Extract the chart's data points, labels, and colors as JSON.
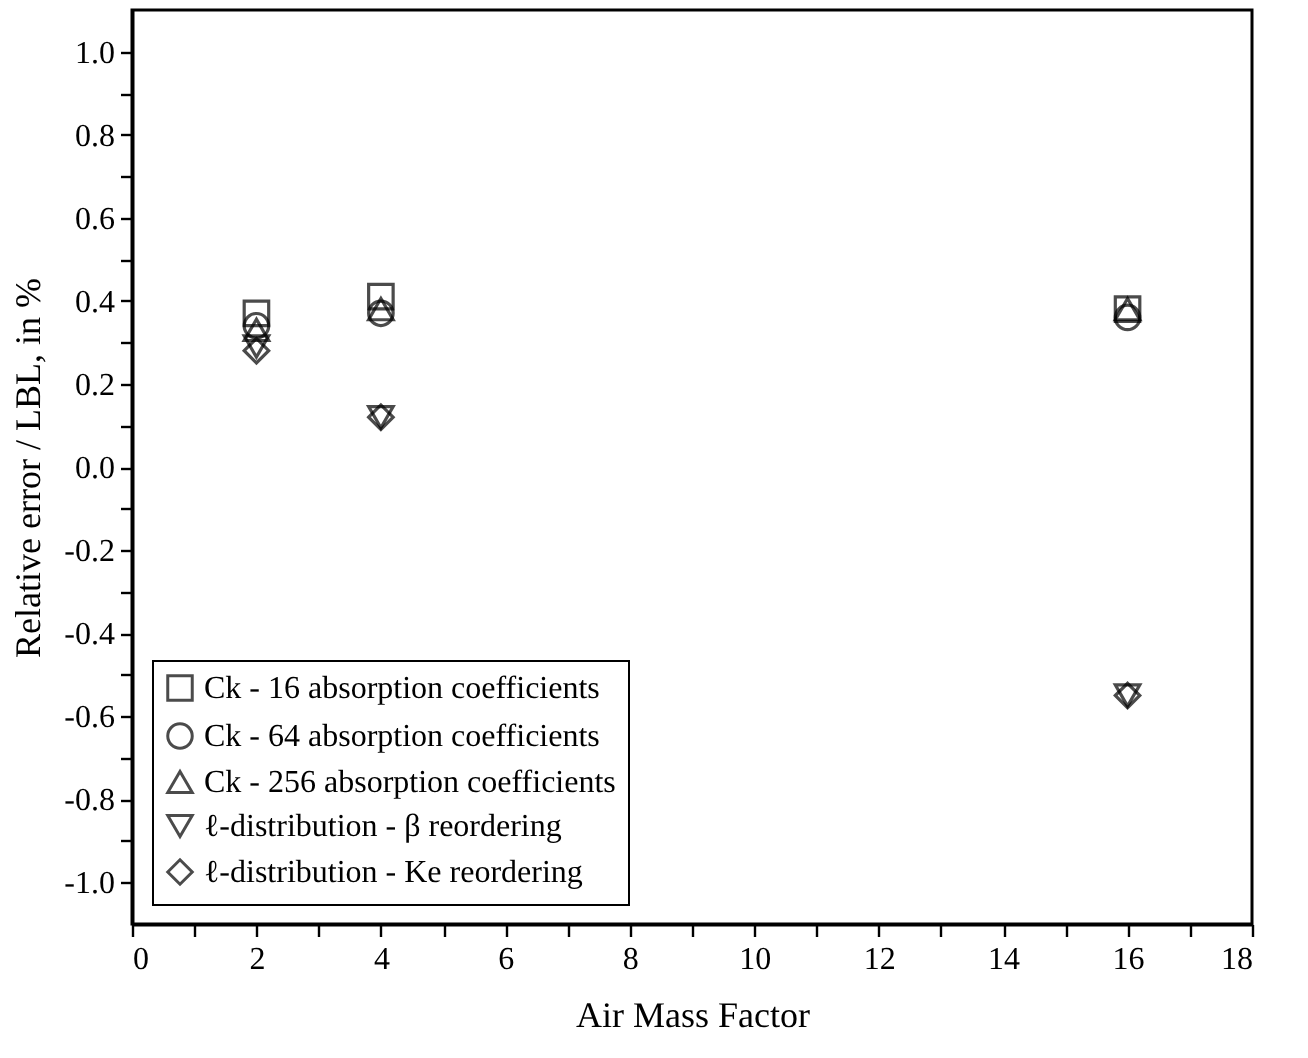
{
  "chart_data": {
    "type": "scatter",
    "xlabel": "Air Mass Factor",
    "ylabel": "Relative error / LBL, in %",
    "x": [
      2,
      4,
      16
    ],
    "series": [
      {
        "name": "Ck - 16 absorption coefficients",
        "color": "#000000",
        "marker": "square",
        "values": [
          0.37,
          0.41,
          0.38
        ]
      },
      {
        "name": "Ck - 64 absorption coefficients",
        "color": "#000000",
        "marker": "circle",
        "values": [
          0.34,
          0.37,
          0.36
        ]
      },
      {
        "name": "Ck - 256 absorption coefficients",
        "color": "#000000",
        "marker": "triangle",
        "values": [
          0.33,
          0.38,
          0.38
        ]
      },
      {
        "name": "ℓ-distribution - β reordering",
        "color": "#000000",
        "marker": "triangle-down",
        "values": [
          0.29,
          0.12,
          -0.55
        ]
      },
      {
        "name": "ℓ-distribution - Ke reordering",
        "color": "#000000",
        "marker": "diamond",
        "values": [
          0.28,
          0.12,
          -0.55
        ]
      }
    ],
    "xlim": [
      0,
      18
    ],
    "xticks": [
      0,
      {
        "value": 1,
        "label": null
      },
      2,
      {
        "value": 3,
        "label": null
      },
      4,
      {
        "value": 5,
        "label": null
      },
      6,
      {
        "value": 7,
        "label": null
      },
      8,
      {
        "value": 9,
        "label": null
      },
      10,
      {
        "value": 11,
        "label": null
      },
      12,
      {
        "value": 13,
        "label": null
      },
      14,
      {
        "value": 15,
        "label": null
      },
      16,
      {
        "value": 17,
        "label": null
      },
      18
    ],
    "ylim": [
      -1.1,
      1.1
    ],
    "yticks": [
      {
        "value": -1.0,
        "label": "-1.0"
      },
      {
        "value": -0.9,
        "label": null
      },
      -0.8,
      {
        "value": -0.7,
        "label": null
      },
      -0.6,
      {
        "value": -0.5,
        "label": null
      },
      -0.4,
      {
        "value": -0.3,
        "label": null
      },
      -0.2,
      {
        "value": -0.1,
        "label": null
      },
      {
        "value": 0,
        "label": "0.0"
      },
      {
        "value": 0.1,
        "label": null
      },
      0.2,
      {
        "value": 0.3,
        "label": null
      },
      0.4,
      {
        "value": 0.5,
        "label": null
      },
      0.6,
      {
        "value": 0.7,
        "label": null
      },
      0.8,
      {
        "value": 0.9,
        "label": null
      },
      {
        "value": 1.0,
        "label": "1.0"
      }
    ],
    "grid": false,
    "legend": "bottom left"
  }
}
